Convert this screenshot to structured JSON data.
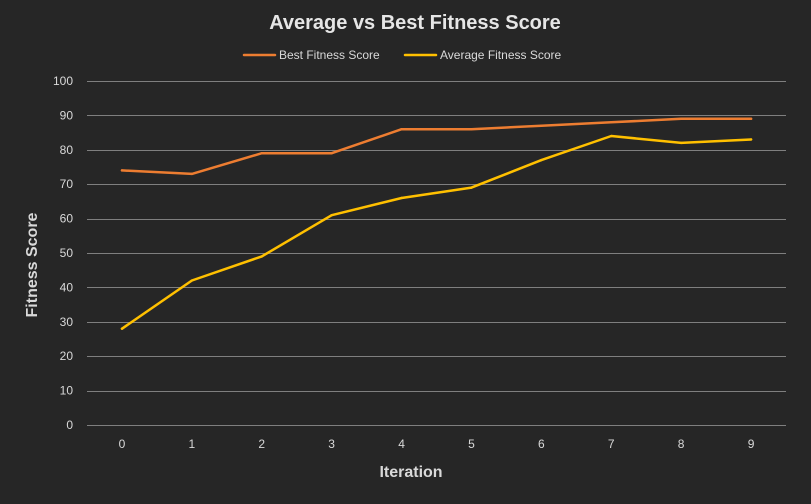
{
  "chart_data": {
    "type": "line",
    "title": "Average vs Best Fitness Score",
    "xlabel": "Iteration",
    "ylabel": "Fitness Score",
    "categories": [
      "0",
      "1",
      "2",
      "3",
      "4",
      "5",
      "6",
      "7",
      "8",
      "9"
    ],
    "ylim": [
      0,
      100
    ],
    "yticks": [
      "0",
      "10",
      "20",
      "30",
      "40",
      "50",
      "60",
      "70",
      "80",
      "90",
      "100"
    ],
    "grid": true,
    "legend_position": "top",
    "series": [
      {
        "name": "Best Fitness Score",
        "color": "#ed7d31",
        "values": [
          74,
          73,
          79,
          79,
          86,
          86,
          87,
          88,
          89,
          89
        ]
      },
      {
        "name": "Average Fitness Score",
        "color": "#ffc000",
        "values": [
          28,
          42,
          49,
          61,
          66,
          69,
          77,
          84,
          82,
          83
        ]
      }
    ]
  }
}
